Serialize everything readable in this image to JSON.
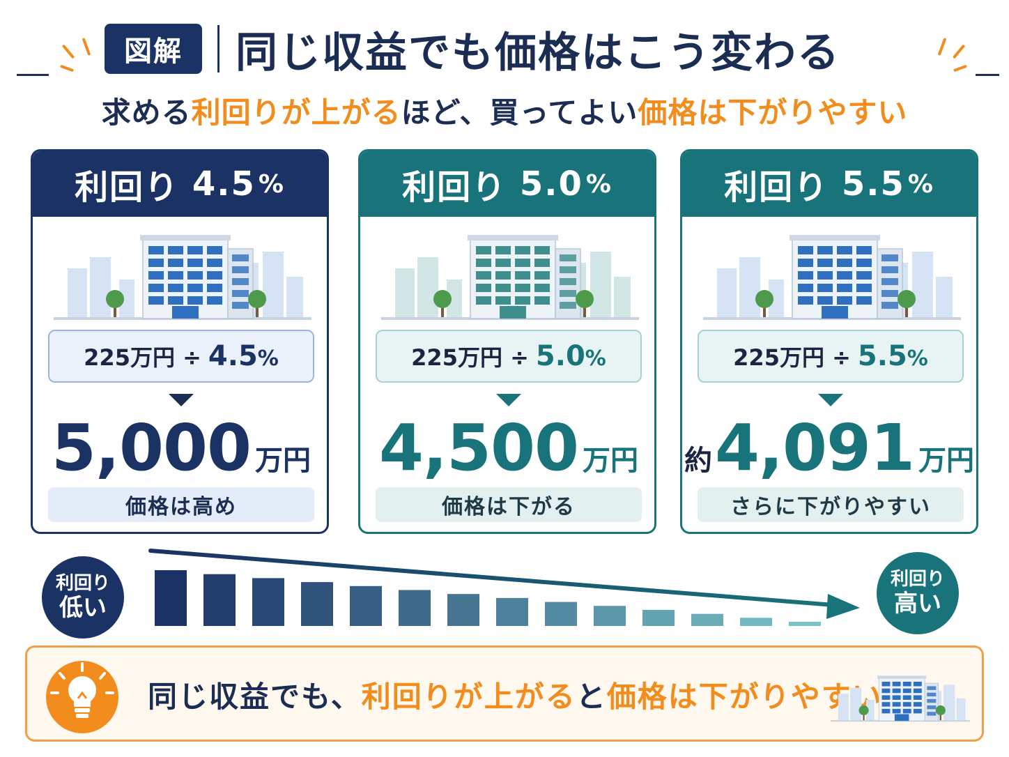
{
  "header": {
    "tag": "図解",
    "title": "同じ収益でも価格はこう変わる",
    "subtitle": {
      "p1": "求める",
      "p2": "利回りが上がる",
      "p3": "ほど、買ってよい",
      "p4": "価格は下がりやすい"
    }
  },
  "cards": [
    {
      "head_label": "利回り",
      "rate": "4.5",
      "pct": "%",
      "formula_income": "225万円 ÷",
      "formula_rate": "4.5",
      "formula_pct": "%",
      "price_prefix": "",
      "price": "5,000",
      "unit": "万円",
      "note": "価格は高め",
      "accent": "#1b3264"
    },
    {
      "head_label": "利回り",
      "rate": "5.0",
      "pct": "%",
      "formula_income": "225万円 ÷",
      "formula_rate": "5.0",
      "formula_pct": "%",
      "price_prefix": "",
      "price": "4,500",
      "unit": "万円",
      "note": "価格は下がる",
      "accent": "#18737a"
    },
    {
      "head_label": "利回り",
      "rate": "5.5",
      "pct": "%",
      "formula_income": "225万円 ÷",
      "formula_rate": "5.5",
      "formula_pct": "%",
      "price_prefix": "約",
      "price": "4,091",
      "unit": "万円",
      "note": "さらに下がりやすい",
      "accent": "#18737a"
    }
  ],
  "trend": {
    "low": {
      "line1": "利回り",
      "line2": "低い"
    },
    "high": {
      "line1": "利回り",
      "line2": "高い"
    }
  },
  "banner": {
    "p1": "同じ収益でも、",
    "p2": "利回りが上がる",
    "p3": "と",
    "p4": "価格は下がりやすい"
  },
  "colors": {
    "navy": "#1b3264",
    "teal": "#18737a",
    "orange": "#f28c1c"
  },
  "icons": [
    "building-icon",
    "tree-icon",
    "lightbulb-icon",
    "down-arrow-icon",
    "trend-arrow-icon"
  ]
}
